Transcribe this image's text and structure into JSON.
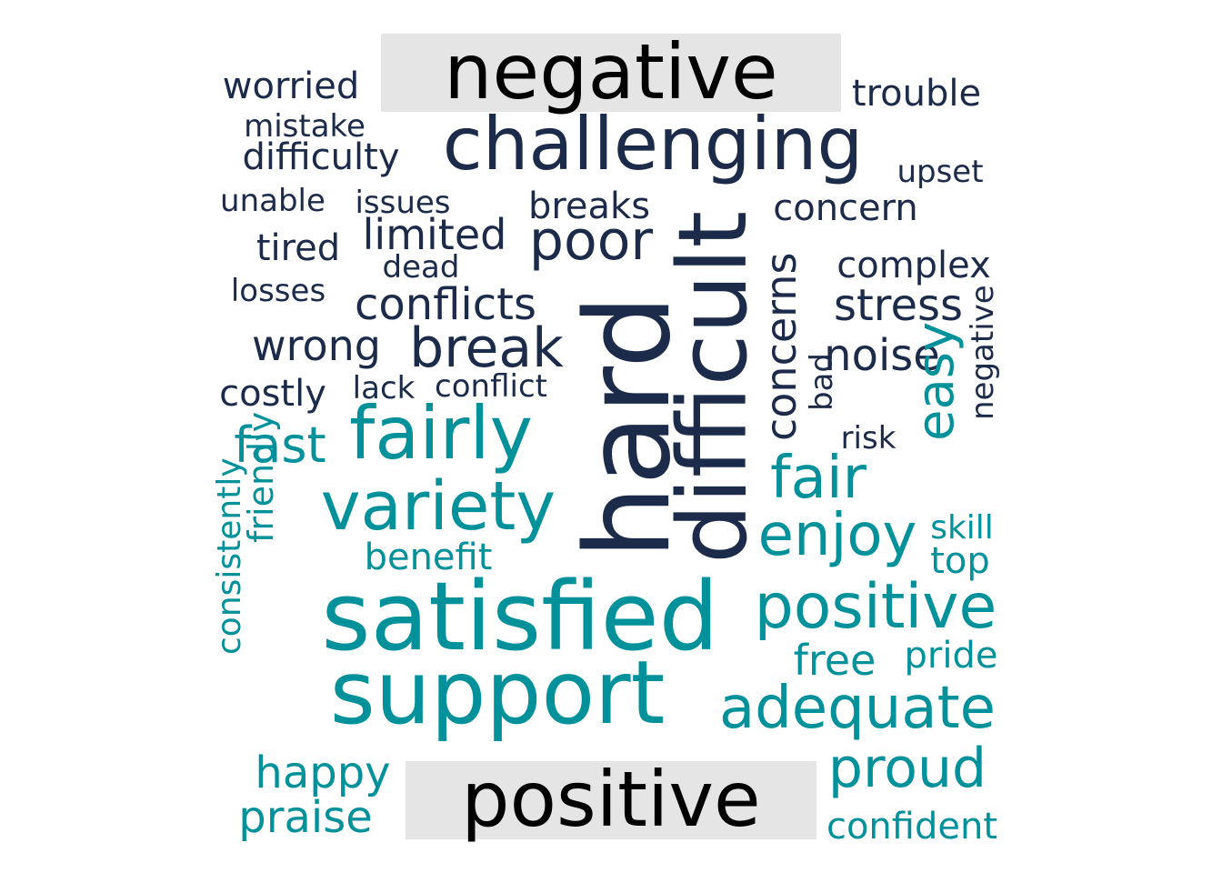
{
  "chart_data": {
    "type": "wordcloud",
    "colors": {
      "negative": "#1c2b49",
      "positive": "#00919b",
      "label_box": "#e5e5e5",
      "label_text": "#000000"
    },
    "groups": [
      {
        "label": "negative",
        "words": [
          {
            "word": "hard",
            "size": 100
          },
          {
            "word": "difficult",
            "size": 82
          },
          {
            "word": "challenging",
            "size": 75
          },
          {
            "word": "poor",
            "size": 60
          },
          {
            "word": "break",
            "size": 58
          },
          {
            "word": "concerns",
            "size": 45
          },
          {
            "word": "conflicts",
            "size": 45
          },
          {
            "word": "stress",
            "size": 45
          },
          {
            "word": "noise",
            "size": 45
          },
          {
            "word": "wrong",
            "size": 44
          },
          {
            "word": "limited",
            "size": 44
          },
          {
            "word": "trouble",
            "size": 40
          },
          {
            "word": "breaks",
            "size": 40
          },
          {
            "word": "concern",
            "size": 40
          },
          {
            "word": "worried",
            "size": 40
          },
          {
            "word": "tired",
            "size": 39
          },
          {
            "word": "complex",
            "size": 39
          },
          {
            "word": "difficulty",
            "size": 38
          },
          {
            "word": "costly",
            "size": 38
          },
          {
            "word": "upset",
            "size": 34
          },
          {
            "word": "issues",
            "size": 34
          },
          {
            "word": "risk",
            "size": 34
          },
          {
            "word": "mistake",
            "size": 33
          },
          {
            "word": "unable",
            "size": 33
          },
          {
            "word": "negative",
            "size": 33
          },
          {
            "word": "lack",
            "size": 33
          },
          {
            "word": "conflict",
            "size": 33
          },
          {
            "word": "dead",
            "size": 33
          },
          {
            "word": "bad",
            "size": 32
          },
          {
            "word": "losses",
            "size": 32
          }
        ]
      },
      {
        "label": "positive",
        "words": [
          {
            "word": "satisfied",
            "size": 100
          },
          {
            "word": "support",
            "size": 93
          },
          {
            "word": "fairly",
            "size": 75
          },
          {
            "word": "variety",
            "size": 70
          },
          {
            "word": "positive",
            "size": 64
          },
          {
            "word": "enjoy",
            "size": 62
          },
          {
            "word": "adequate",
            "size": 62
          },
          {
            "word": "fair",
            "size": 60
          },
          {
            "word": "proud",
            "size": 58
          },
          {
            "word": "easy",
            "size": 55
          },
          {
            "word": "fast",
            "size": 52
          },
          {
            "word": "happy",
            "size": 46
          },
          {
            "word": "praise",
            "size": 45
          },
          {
            "word": "free",
            "size": 43
          },
          {
            "word": "benefit",
            "size": 40
          },
          {
            "word": "top",
            "size": 40
          },
          {
            "word": "confident",
            "size": 39
          },
          {
            "word": "pride",
            "size": 38
          },
          {
            "word": "friendly",
            "size": 37
          },
          {
            "word": "consistently",
            "size": 35
          },
          {
            "word": "skill",
            "size": 35
          }
        ]
      }
    ]
  }
}
